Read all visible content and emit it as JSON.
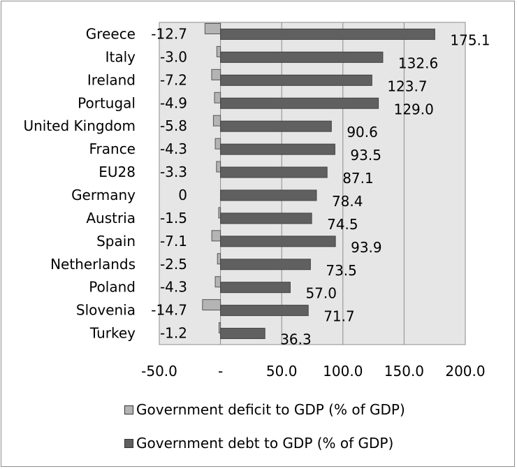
{
  "chart_data": {
    "type": "bar",
    "orientation": "horizontal",
    "categories": [
      "Greece",
      "Italy",
      "Ireland",
      "Portugal",
      "United Kingdom",
      "France",
      "EU28",
      "Germany",
      "Austria",
      "Spain",
      "Netherlands",
      "Poland",
      "Slovenia",
      "Turkey"
    ],
    "series": [
      {
        "name": "Government deficit to GDP (% of GDP)",
        "values": [
          -12.7,
          -3.0,
          -7.2,
          -4.9,
          -5.8,
          -4.3,
          -3.3,
          0,
          -1.5,
          -7.1,
          -2.5,
          -4.3,
          -14.7,
          -1.2
        ],
        "labels": [
          "-12.7",
          "-3.0",
          "-7.2",
          "-4.9",
          "-5.8",
          "-4.3",
          "-3.3",
          "0",
          "-1.5",
          "-7.1",
          "-2.5",
          "-4.3",
          "-14.7",
          "-1.2"
        ],
        "color": "#b4b4b4"
      },
      {
        "name": "Government debt to GDP (% of GDP)",
        "values": [
          175.1,
          132.6,
          123.7,
          129.0,
          90.6,
          93.5,
          87.1,
          78.4,
          74.5,
          93.9,
          73.5,
          57.0,
          71.7,
          36.3
        ],
        "labels": [
          "175.1",
          "132.6",
          "123.7",
          "129.0",
          "90.6",
          "93.5",
          "87.1",
          "78.4",
          "74.5",
          "93.9",
          "73.5",
          "57.0",
          "71.7",
          "36.3"
        ],
        "color": "#606060"
      }
    ],
    "xlim": [
      -50,
      200
    ],
    "x_ticks": [
      -50,
      0,
      50,
      100,
      150,
      200
    ],
    "x_tick_labels": [
      "-50.0",
      "-",
      "50.0",
      "100.0",
      "150.0",
      "200.0"
    ],
    "grid": true,
    "plot_background": "#e6e6e6",
    "legend_position": "bottom"
  }
}
